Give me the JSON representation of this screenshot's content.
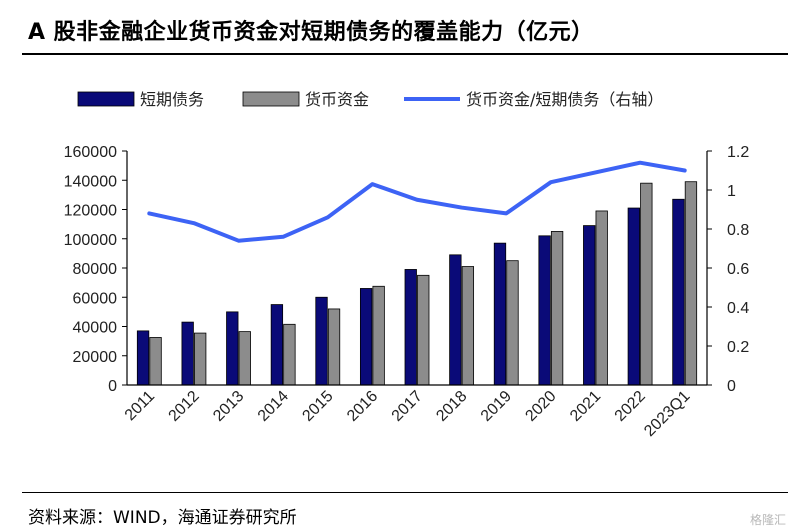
{
  "title": "A 股非金融企业货币资金对短期债务的覆盖能力（亿元）",
  "source": "资料来源：WIND，海通证券研究所",
  "watermark": "格隆汇",
  "colors": {
    "short_debt": "#0a0a78",
    "cash": "#8c8c8c",
    "ratio": "#3d63f5"
  },
  "chart_data": {
    "type": "bar",
    "categories": [
      "2011",
      "2012",
      "2013",
      "2014",
      "2015",
      "2016",
      "2017",
      "2018",
      "2019",
      "2020",
      "2021",
      "2022",
      "2023Q1"
    ],
    "series": [
      {
        "name": "短期债务",
        "type": "bar",
        "axis": "left",
        "values": [
          37000,
          43000,
          50000,
          55000,
          60000,
          66000,
          79000,
          89000,
          97000,
          102000,
          109000,
          121000,
          127000
        ]
      },
      {
        "name": "货币资金",
        "type": "bar",
        "axis": "left",
        "values": [
          32500,
          35500,
          36500,
          41500,
          52000,
          67500,
          75000,
          81000,
          85000,
          105000,
          119000,
          138000,
          139000
        ]
      },
      {
        "name": "货币资金/短期债务（右轴）",
        "type": "line",
        "axis": "right",
        "values": [
          0.88,
          0.83,
          0.74,
          0.76,
          0.86,
          1.03,
          0.95,
          0.91,
          0.88,
          1.04,
          1.09,
          1.14,
          1.1
        ]
      }
    ],
    "ylim_left": [
      0,
      160000
    ],
    "yticks_left": [
      "0",
      "20000",
      "40000",
      "60000",
      "80000",
      "100000",
      "120000",
      "140000",
      "160000"
    ],
    "ylim_right": [
      0,
      1.2
    ],
    "yticks_right": [
      "0",
      "0.2",
      "0.4",
      "0.6",
      "0.8",
      "1",
      "1.2"
    ],
    "legend_position": "top",
    "grid": false
  }
}
